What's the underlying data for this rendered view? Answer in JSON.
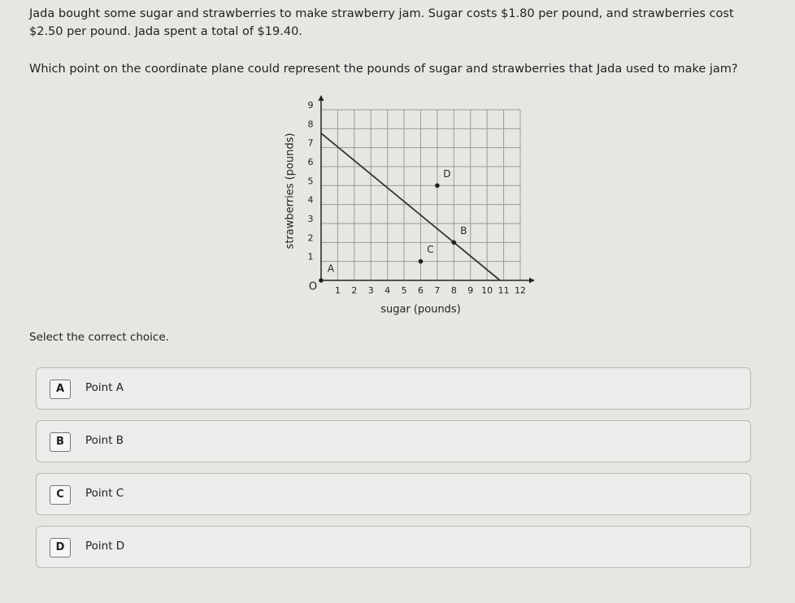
{
  "question": {
    "text": "Jada bought some sugar and strawberries to make strawberry jam. Sugar costs $1.80 per pound, and strawberries cost $2.50 per pound. Jada spent a total of $19.40.",
    "prompt": "Which point on the coordinate plane could represent the pounds of sugar and strawberries that Jada used to make jam?"
  },
  "chart_data": {
    "type": "scatter",
    "xlabel": "sugar (pounds)",
    "ylabel": "strawberries (pounds)",
    "origin_label": "O",
    "xlim": [
      0,
      12
    ],
    "ylim": [
      0,
      9
    ],
    "xticks": [
      1,
      2,
      3,
      4,
      5,
      6,
      7,
      8,
      9,
      10,
      11,
      12
    ],
    "yticks": [
      1,
      2,
      3,
      4,
      5,
      6,
      7,
      8,
      9
    ],
    "grid": true,
    "line": {
      "x": [
        0,
        10.78
      ],
      "y": [
        7.76,
        0
      ],
      "color": "#333333"
    },
    "points": [
      {
        "name": "A",
        "x": 0,
        "y": 0
      },
      {
        "name": "B",
        "x": 8,
        "y": 2
      },
      {
        "name": "C",
        "x": 6,
        "y": 1
      },
      {
        "name": "D",
        "x": 7,
        "y": 5
      }
    ],
    "color": "#222222"
  },
  "instruction": "Select the correct choice.",
  "choices": [
    {
      "letter": "A",
      "text": "Point A"
    },
    {
      "letter": "B",
      "text": "Point B"
    },
    {
      "letter": "C",
      "text": "Point C"
    },
    {
      "letter": "D",
      "text": "Point D"
    }
  ]
}
